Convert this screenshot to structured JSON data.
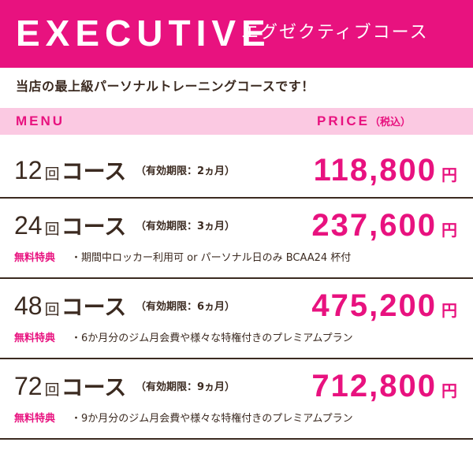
{
  "banner": {
    "title": "EXECUTIVE",
    "subtitle": "エグゼクティブコース",
    "background_color": "#e8127f"
  },
  "intro": "当店の最上級パーソナルトレーニングコースです！",
  "header": {
    "menu_label": "MENU",
    "price_label": "PRICE",
    "tax_note": "（税込）",
    "background_color": "#fbc9e2"
  },
  "courses": [
    {
      "count": "12",
      "kai": "回",
      "course": "コース",
      "validity": "（有効期限：2ヵ月）",
      "price": "118,800",
      "yen": "円",
      "bonus_label": "",
      "bonus_text": ""
    },
    {
      "count": "24",
      "kai": "回",
      "course": "コース",
      "validity": "（有効期限：3ヵ月）",
      "price": "237,600",
      "yen": "円",
      "bonus_label": "無料特典",
      "bonus_text": "・期間中ロッカー利用可 or パーソナル日のみ BCAA24 杯付"
    },
    {
      "count": "48",
      "kai": "回",
      "course": "コース",
      "validity": "（有効期限：6ヵ月）",
      "price": "475,200",
      "yen": "円",
      "bonus_label": "無料特典",
      "bonus_text": "・6か月分のジム月会費や様々な特権付きのプレミアムプラン"
    },
    {
      "count": "72",
      "kai": "回",
      "course": "コース",
      "validity": "（有効期限：9ヵ月）",
      "price": "712,800",
      "yen": "円",
      "bonus_label": "無料特典",
      "bonus_text": "・9か月分のジム月会費や様々な特権付きのプレミアムプラン"
    }
  ],
  "colors": {
    "accent": "#e8127f",
    "text": "#3b2a20"
  }
}
